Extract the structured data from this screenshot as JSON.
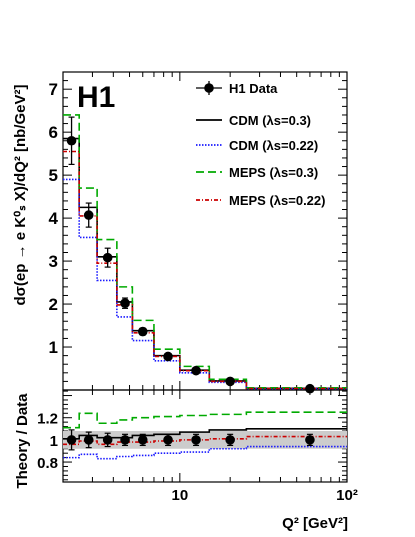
{
  "chart_data": [
    {
      "type": "line",
      "panel": "main",
      "label": "H1",
      "ylabel": "dσ(ep → e K⁰ₛ X)/dQ² [nb/GeV²]",
      "xscale": "log",
      "xlim": [
        2,
        100
      ],
      "ylim": [
        0,
        7.4
      ],
      "y_ticks": [
        "1",
        "2",
        "3",
        "4",
        "5",
        "6",
        "7"
      ],
      "legend_position": "top-right",
      "bin_edges": [
        2.0,
        2.5,
        3.2,
        4.2,
        5.2,
        7.0,
        10.0,
        15.0,
        25.0,
        100.0
      ],
      "series": [
        {
          "name": "H1 Data",
          "style": "points",
          "x": [
            2.25,
            2.85,
            3.7,
            4.7,
            6.0,
            8.5,
            12.5,
            20.0,
            60.0
          ],
          "y": [
            5.8,
            4.07,
            3.08,
            2.02,
            1.36,
            0.78,
            0.45,
            0.2,
            0.03
          ],
          "err": [
            0.55,
            0.28,
            0.22,
            0.12,
            0.08,
            0.05,
            0.04,
            0.02,
            0.01
          ]
        },
        {
          "name": "CDM (λs=0.3)",
          "style": "solid",
          "color": "#000000",
          "values": [
            5.85,
            4.25,
            3.1,
            2.05,
            1.38,
            0.8,
            0.46,
            0.21,
            0.04
          ]
        },
        {
          "name": "CDM (λs=0.22)",
          "style": "dotted",
          "color": "#1a1aff",
          "values": [
            4.9,
            3.55,
            2.55,
            1.7,
            1.15,
            0.68,
            0.4,
            0.18,
            0.03
          ]
        },
        {
          "name": "MEPS (λs=0.3)",
          "style": "dashed",
          "color": "#00aa00",
          "values": [
            6.4,
            4.7,
            3.5,
            2.4,
            1.62,
            0.95,
            0.55,
            0.25,
            0.05
          ]
        },
        {
          "name": "MEPS (λs=0.22)",
          "style": "dashdot",
          "color": "#cc0000",
          "values": [
            5.55,
            4.05,
            2.95,
            1.98,
            1.33,
            0.78,
            0.45,
            0.2,
            0.035
          ]
        }
      ]
    },
    {
      "type": "line",
      "panel": "ratio",
      "xlabel": "Q² [GeV²]",
      "ylabel": "Theory / Data",
      "xscale": "log",
      "xlim": [
        2,
        100
      ],
      "x_ticks": [
        "10",
        "10²"
      ],
      "ylim": [
        0.62,
        1.45
      ],
      "y_ticks": [
        "0.8",
        "1",
        "1.2"
      ],
      "bin_edges": [
        2.0,
        2.5,
        3.2,
        4.2,
        5.2,
        7.0,
        10.0,
        15.0,
        25.0,
        100.0
      ],
      "band": [
        0.08,
        0.08,
        0.08,
        0.08,
        0.08,
        0.08,
        0.08,
        0.08,
        0.08
      ],
      "series": [
        {
          "name": "H1 Data",
          "style": "points",
          "x": [
            2.25,
            2.85,
            3.7,
            4.7,
            6.0,
            8.5,
            12.5,
            20.0,
            60.0
          ],
          "y": [
            1.0,
            1.0,
            1.0,
            1.0,
            1.0,
            1.0,
            1.0,
            1.0,
            1.0
          ],
          "err": [
            0.09,
            0.07,
            0.06,
            0.05,
            0.05,
            0.05,
            0.05,
            0.05,
            0.05
          ]
        },
        {
          "name": "CDM (λs=0.3)",
          "style": "solid",
          "color": "#000000",
          "values": [
            1.01,
            1.04,
            1.02,
            1.02,
            1.04,
            1.05,
            1.07,
            1.09,
            1.1
          ]
        },
        {
          "name": "CDM (λs=0.22)",
          "style": "dotted",
          "color": "#1a1aff",
          "values": [
            0.84,
            0.87,
            0.83,
            0.85,
            0.86,
            0.88,
            0.89,
            0.92,
            0.94
          ]
        },
        {
          "name": "MEPS (λs=0.3)",
          "style": "dashed",
          "color": "#00aa00",
          "values": [
            1.11,
            1.24,
            1.15,
            1.18,
            1.2,
            1.21,
            1.22,
            1.23,
            1.25
          ]
        },
        {
          "name": "MEPS (λs=0.22)",
          "style": "dashdot",
          "color": "#cc0000",
          "values": [
            0.96,
            0.99,
            0.96,
            0.98,
            0.98,
            0.99,
            1.0,
            1.01,
            1.03
          ]
        }
      ]
    }
  ]
}
